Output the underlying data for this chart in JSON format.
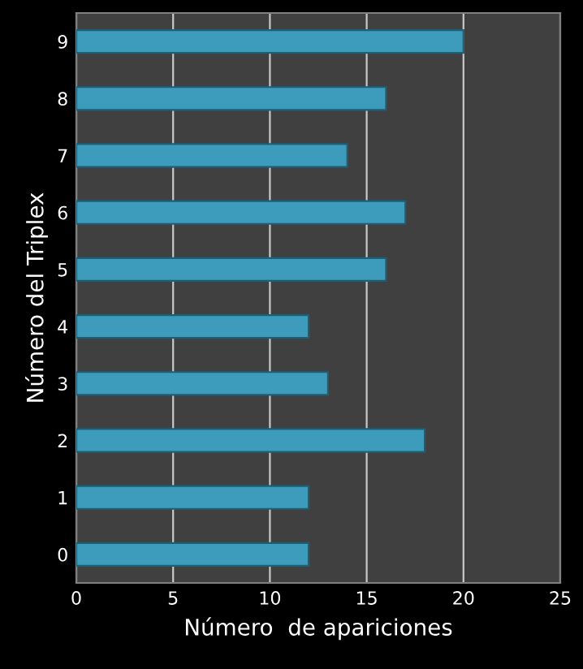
{
  "chart_data": {
    "type": "bar",
    "orientation": "horizontal",
    "xlabel": "Número  de apariciones",
    "ylabel": "Número del Triplex",
    "categories": [
      "9",
      "8",
      "7",
      "6",
      "5",
      "4",
      "3",
      "2",
      "1",
      "0"
    ],
    "values": [
      20,
      16,
      14,
      17,
      16,
      12,
      13,
      18,
      12,
      12
    ],
    "color": "#3d9bbb",
    "xlim": [
      0,
      25
    ],
    "xticks": [
      0,
      5,
      10,
      15,
      20,
      25
    ],
    "grid": "x",
    "legend": false
  }
}
